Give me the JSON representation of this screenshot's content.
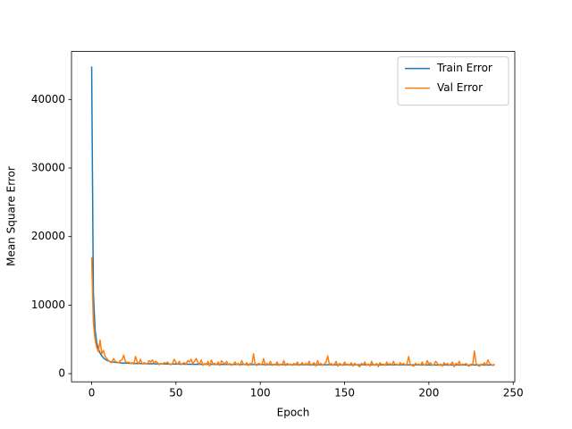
{
  "chart_data": {
    "type": "line",
    "x_label": "Epoch",
    "y_label": "Mean Square Error",
    "legend": "upper right",
    "xlim": [
      -11.95,
      250.95
    ],
    "xticks": [
      0,
      50,
      100,
      150,
      200,
      250
    ],
    "ylim": [
      -1190,
      47000
    ],
    "yticks": [
      0,
      10000,
      20000,
      30000,
      40000
    ],
    "x": [
      0,
      1,
      2,
      3,
      4,
      5,
      6,
      7,
      8,
      9,
      10,
      11,
      12,
      13,
      14,
      15,
      16,
      17,
      18,
      19,
      20,
      21,
      22,
      23,
      24,
      25,
      26,
      27,
      28,
      29,
      30,
      31,
      32,
      33,
      34,
      35,
      36,
      37,
      38,
      39,
      40,
      41,
      42,
      43,
      44,
      45,
      46,
      47,
      48,
      49,
      50,
      51,
      52,
      53,
      54,
      55,
      56,
      57,
      58,
      59,
      60,
      61,
      62,
      63,
      64,
      65,
      66,
      67,
      68,
      69,
      70,
      71,
      72,
      73,
      74,
      75,
      76,
      77,
      78,
      79,
      80,
      81,
      82,
      83,
      84,
      85,
      86,
      87,
      88,
      89,
      90,
      91,
      92,
      93,
      94,
      95,
      96,
      97,
      98,
      99,
      100,
      101,
      102,
      103,
      104,
      105,
      106,
      107,
      108,
      109,
      110,
      111,
      112,
      113,
      114,
      115,
      116,
      117,
      118,
      119,
      120,
      121,
      122,
      123,
      124,
      125,
      126,
      127,
      128,
      129,
      130,
      131,
      132,
      133,
      134,
      135,
      136,
      137,
      138,
      139,
      140,
      141,
      142,
      143,
      144,
      145,
      146,
      147,
      148,
      149,
      150,
      151,
      152,
      153,
      154,
      155,
      156,
      157,
      158,
      159,
      160,
      161,
      162,
      163,
      164,
      165,
      166,
      167,
      168,
      169,
      170,
      171,
      172,
      173,
      174,
      175,
      176,
      177,
      178,
      179,
      180,
      181,
      182,
      183,
      184,
      185,
      186,
      187,
      188,
      189,
      190,
      191,
      192,
      193,
      194,
      195,
      196,
      197,
      198,
      199,
      200,
      201,
      202,
      203,
      204,
      205,
      206,
      207,
      208,
      209,
      210,
      211,
      212,
      213,
      214,
      215,
      216,
      217,
      218,
      219,
      220,
      221,
      222,
      223,
      224,
      225,
      226,
      227,
      228,
      229,
      230,
      231,
      232,
      233,
      234,
      235,
      236,
      237,
      238,
      239
    ],
    "series": [
      {
        "name": "Train Error",
        "color": "#1f77b4",
        "values": [
          44800,
          12000,
          6500,
          4500,
          3600,
          3000,
          2600,
          2300,
          2100,
          1950,
          1850,
          1780,
          1720,
          1680,
          1650,
          1620,
          1600,
          1580,
          1560,
          1550,
          1540,
          1530,
          1520,
          1510,
          1500,
          1500,
          1490,
          1480,
          1480,
          1470,
          1470,
          1460,
          1460,
          1450,
          1450,
          1450,
          1440,
          1440,
          1430,
          1430,
          1430,
          1420,
          1420,
          1420,
          1410,
          1410,
          1410,
          1400,
          1400,
          1400,
          1400,
          1390,
          1390,
          1390,
          1390,
          1380,
          1380,
          1380,
          1380,
          1380,
          1370,
          1370,
          1370,
          1370,
          1370,
          1370,
          1360,
          1360,
          1360,
          1360,
          1360,
          1360,
          1360,
          1350,
          1350,
          1350,
          1350,
          1350,
          1350,
          1350,
          1350,
          1350,
          1340,
          1340,
          1340,
          1340,
          1340,
          1340,
          1340,
          1340,
          1340,
          1330,
          1330,
          1330,
          1330,
          1330,
          1330,
          1330,
          1330,
          1330,
          1330,
          1330,
          1330,
          1320,
          1320,
          1320,
          1320,
          1320,
          1320,
          1320,
          1320,
          1320,
          1320,
          1320,
          1320,
          1310,
          1310,
          1310,
          1310,
          1310,
          1310,
          1310,
          1310,
          1310,
          1310,
          1310,
          1310,
          1310,
          1310,
          1300,
          1300,
          1300,
          1300,
          1300,
          1300,
          1300,
          1300,
          1300,
          1300,
          1300,
          1300,
          1300,
          1300,
          1300,
          1300,
          1300,
          1300,
          1290,
          1290,
          1290,
          1290,
          1290,
          1290,
          1290,
          1290,
          1290,
          1290,
          1290,
          1290,
          1290,
          1290,
          1290,
          1290,
          1290,
          1290,
          1290,
          1290,
          1290,
          1290,
          1290,
          1290,
          1280,
          1280,
          1280,
          1280,
          1280,
          1280,
          1280,
          1280,
          1280,
          1280,
          1280,
          1280,
          1280,
          1280,
          1280,
          1280,
          1280,
          1280,
          1280,
          1280,
          1280,
          1280,
          1280,
          1280,
          1280,
          1280,
          1280,
          1280,
          1280,
          1270,
          1270,
          1270,
          1270,
          1270,
          1270,
          1270,
          1270,
          1270,
          1270,
          1270,
          1270,
          1270,
          1270,
          1270,
          1270,
          1270,
          1270,
          1270,
          1270,
          1270,
          1270,
          1270,
          1270,
          1270,
          1270,
          1270,
          1270,
          1270,
          1270,
          1270,
          1270,
          1270,
          1270,
          1270,
          1270,
          1270,
          1270,
          1270,
          1270
        ]
      },
      {
        "name": "Val Error",
        "color": "#ff7f0e",
        "values": [
          17000,
          7500,
          5000,
          3800,
          3200,
          4900,
          2900,
          3400,
          2500,
          2200,
          1900,
          1700,
          1600,
          2200,
          1800,
          1700,
          1600,
          1900,
          2000,
          2700,
          1800,
          1600,
          1700,
          1500,
          1600,
          1400,
          2500,
          1700,
          1500,
          2100,
          1400,
          1600,
          1500,
          1400,
          1900,
          1700,
          2000,
          1500,
          1800,
          1600,
          1300,
          1500,
          1400,
          1600,
          1500,
          1700,
          1400,
          1300,
          1500,
          2100,
          1600,
          1400,
          1800,
          1300,
          1500,
          1600,
          1400,
          1900,
          1700,
          2100,
          1500,
          1800,
          2200,
          1600,
          1400,
          2000,
          1200,
          1500,
          1300,
          1800,
          1100,
          2000,
          1400,
          1500,
          1300,
          1700,
          1200,
          1900,
          1600,
          1400,
          1800,
          1300,
          1500,
          1200,
          1400,
          1700,
          1300,
          1500,
          1200,
          1900,
          1400,
          1300,
          1600,
          1200,
          1500,
          1400,
          2900,
          1300,
          1200,
          1500,
          1400,
          1300,
          2200,
          1200,
          1500,
          1300,
          1800,
          1200,
          1400,
          1300,
          1700,
          1200,
          1400,
          1300,
          1900,
          1200,
          1500,
          1300,
          1400,
          1200,
          1500,
          1300,
          1700,
          1200,
          1400,
          1600,
          1200,
          1500,
          1300,
          1800,
          1200,
          1400,
          1600,
          1100,
          1900,
          1300,
          1500,
          1200,
          1400,
          1700,
          2600,
          1300,
          1500,
          1200,
          1400,
          1800,
          1100,
          1500,
          1300,
          1200,
          1700,
          1300,
          1400,
          1200,
          1600,
          1100,
          1500,
          1300,
          1200,
          1000,
          1500,
          1300,
          1700,
          1200,
          1400,
          1100,
          1800,
          1300,
          1200,
          1500,
          1000,
          1600,
          1300,
          1400,
          1200,
          1700,
          1300,
          1500,
          1200,
          1800,
          1300,
          1400,
          1200,
          1600,
          1300,
          1500,
          1200,
          1400,
          2500,
          1300,
          1200,
          1100,
          1500,
          1300,
          1400,
          1200,
          1700,
          1300,
          1200,
          1900,
          1400,
          1600,
          1200,
          1300,
          1800,
          1500,
          1200,
          1400,
          1100,
          1600,
          1300,
          1500,
          1200,
          1400,
          1700,
          1000,
          1500,
          1300,
          1800,
          1200,
          1400,
          1300,
          1500,
          1200,
          1100,
          1400,
          1300,
          3300,
          1500,
          1200,
          1100,
          1400,
          1300,
          1600,
          1200,
          2000,
          1500,
          1300,
          1200,
          1400
        ]
      }
    ]
  }
}
